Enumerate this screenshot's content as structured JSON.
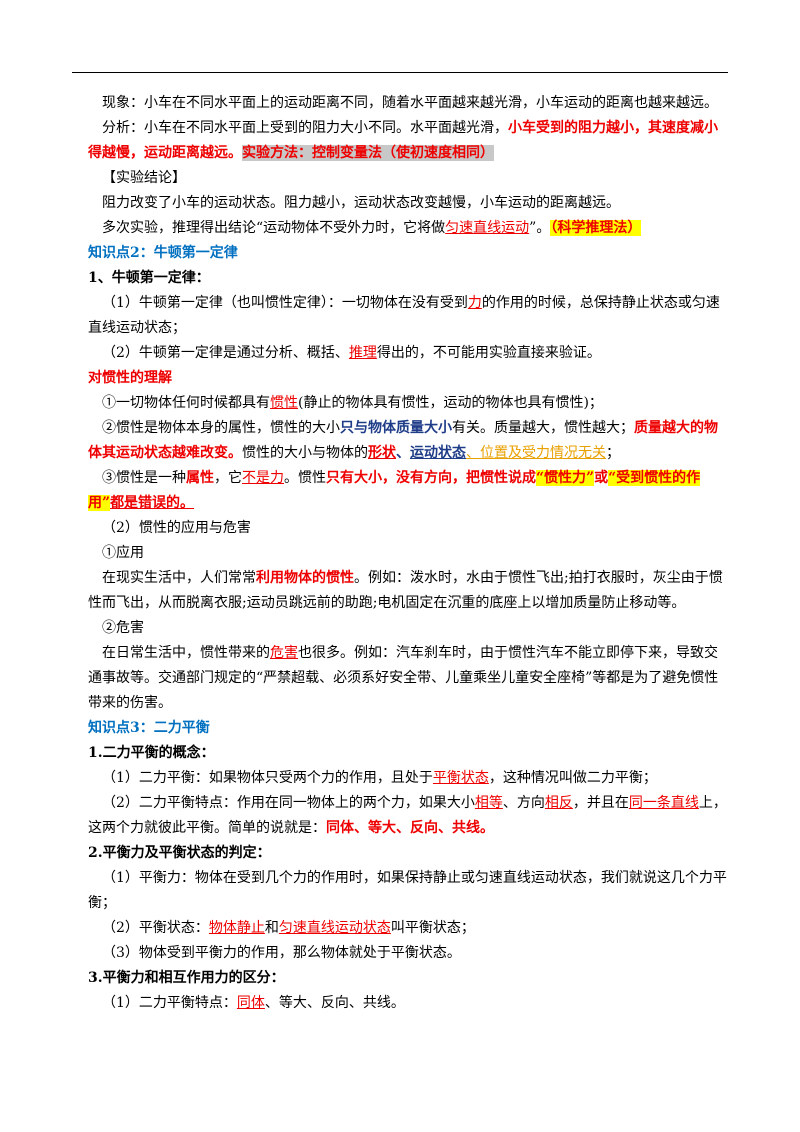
{
  "paragraphs": [
    [
      "现象：小车在不同水平面上的运动距离不同，随着水平面越来越光滑，小车运动的距离也越来越远。"
    ],
    [
      "分析：小车在不同水平面上受到的阻力大小不同。水平面越光滑，",
      "小车受到的阻力越小，其速度减小得越慢，运动距离越远",
      "。",
      "实验方法：控制变量法（使初速度相同）"
    ],
    [
      "【实验结论】"
    ],
    [
      "阻力改变了小车的运动状态。阻力越小，运动状态改变越慢，小车运动的距离越远。"
    ],
    [
      "多次实验，推理得出结论“运动物体不受外力时，它将做",
      "匀速直线运动",
      "”。",
      "（科学推理法）"
    ],
    [
      "知识点2：牛顿第一定律"
    ],
    [
      "1、牛顿第一定律："
    ],
    [
      "（1）牛顿第一定律（也叫惯性定律）：一切物体在没有受到",
      "力",
      "的作用的时候，总保持静止状态或匀速直线运动状态；"
    ],
    [
      "（2）牛顿第一定律是通过分析、概括、",
      "推理",
      "得出的，不可能用实验直接来验证。"
    ],
    [
      "对惯性的理解"
    ],
    [
      "①一切物体任何时候都具有",
      "惯性",
      "(静止的物体具有惯性，运动的物体也具有惯性)；"
    ],
    [
      "②惯性是物体本身的属性，惯性的大小",
      "只与物体质量大小",
      "有关。质量越大，惯性越大；",
      "质量越大的物体其运动状态越难改变。",
      "惯性的大小与物体的",
      "形状",
      "、",
      "运动状态",
      "、",
      "位置及受力情况无关",
      "；"
    ],
    [
      "③惯性是一种",
      "属性",
      "，它",
      "不是力",
      "。惯性",
      "只有大小，没有方向，把惯性说成",
      "“惯性力”",
      "或",
      "“受到惯性的作用”",
      "都是错误的。"
    ],
    [
      "（2）惯性的应用与危害"
    ],
    [
      "①应用"
    ],
    [
      "在现实生活中，人们常常",
      "利用物体的惯性",
      "。例如：泼水时，水由于惯性飞出;拍打衣服时，灰尘由于惯性而飞出，从而脱离衣服;运动员跳远前的助跑;电机固定在沉重的底座上以增加质量防止移动等。"
    ],
    [
      "②危害"
    ],
    [
      "在日常生活中，惯性带来的",
      "危害",
      "也很多。例如：汽车刹车时，由于惯性汽车不能立即停下来，导致交通事故等。交通部门规定的“严禁超载、必须系好安全带、儿童乘坐儿童安全座椅”等都是为了避免惯性带来的伤害。"
    ],
    [
      "知识点3：二力平衡"
    ],
    [
      "1.二力平衡的概念："
    ],
    [
      "（1）二力平衡：如果物体只受两个力的作用，且处于",
      "平衡状态",
      "，这种情况叫做二力平衡；"
    ],
    [
      "（2）二力平衡特点：作用在同一物体上的两个力，如果大小",
      "相等",
      "、方向",
      "相反",
      "，并且在",
      "同一条直线",
      "上，这两个力就彼此平衡。简单的说就是：",
      "同体、等大、反向、共线。"
    ],
    [
      "2.平衡力及平衡状态的判定："
    ],
    [
      "（1）平衡力：物体在受到几个力的作用时，如果保持静止或匀速直线运动状态，我们就说这几个力平衡；"
    ],
    [
      "（2）平衡状态：",
      "物体静止",
      "和",
      "匀速直线运动状态",
      "叫平衡状态；"
    ],
    [
      "（3）物体受到平衡力的作用，那么物体就处于平衡状态。"
    ],
    [
      "3.平衡力和相互作用力的区分："
    ],
    [
      "（1）二力平衡特点：",
      "同体",
      "、等大、反向、共线。"
    ]
  ]
}
